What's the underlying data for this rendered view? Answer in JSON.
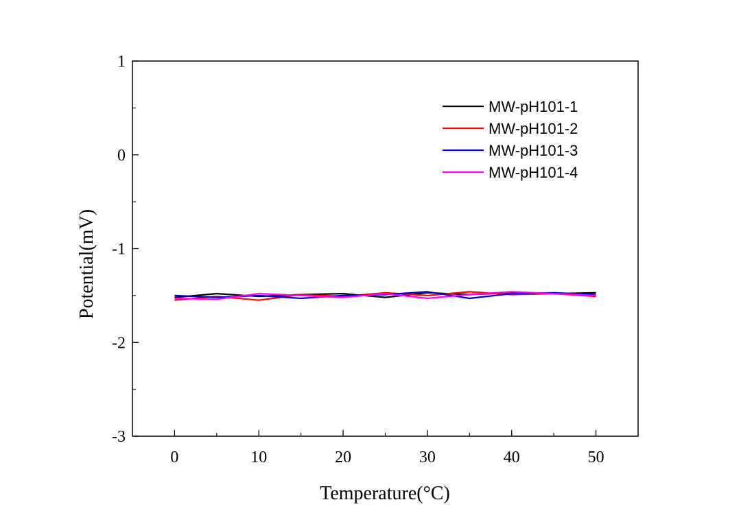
{
  "chart_data": {
    "type": "line",
    "title": "",
    "xlabel": "Temperature(°C)",
    "ylabel": "Potential(mV)",
    "xlim": [
      -5,
      55
    ],
    "ylim": [
      -3,
      1
    ],
    "x_ticks": [
      0,
      10,
      20,
      30,
      40,
      50
    ],
    "x_tick_labels": [
      "0",
      "10",
      "20",
      "30",
      "40",
      "50"
    ],
    "y_ticks": [
      -3,
      -2,
      -1,
      0,
      1
    ],
    "y_tick_labels": [
      "-3",
      "-2",
      "-1",
      "0",
      "1"
    ],
    "grid": false,
    "legend_position": "top-right",
    "x": [
      0,
      5,
      10,
      15,
      20,
      25,
      30,
      35,
      40,
      45,
      50
    ],
    "series": [
      {
        "name": "MW-pH101-1",
        "color": "#000000",
        "values": [
          -1.52,
          -1.48,
          -1.51,
          -1.49,
          -1.48,
          -1.52,
          -1.47,
          -1.49,
          -1.47,
          -1.48,
          -1.47
        ]
      },
      {
        "name": "MW-pH101-2",
        "color": "#ff0000",
        "values": [
          -1.55,
          -1.51,
          -1.55,
          -1.49,
          -1.51,
          -1.47,
          -1.5,
          -1.46,
          -1.49,
          -1.48,
          -1.51
        ]
      },
      {
        "name": "MW-pH101-3",
        "color": "#0000cc",
        "values": [
          -1.5,
          -1.52,
          -1.5,
          -1.53,
          -1.5,
          -1.49,
          -1.46,
          -1.53,
          -1.48,
          -1.47,
          -1.49
        ]
      },
      {
        "name": "MW-pH101-4",
        "color": "#ff00ff",
        "values": [
          -1.53,
          -1.54,
          -1.48,
          -1.5,
          -1.52,
          -1.48,
          -1.53,
          -1.49,
          -1.46,
          -1.48,
          -1.5
        ]
      }
    ]
  }
}
